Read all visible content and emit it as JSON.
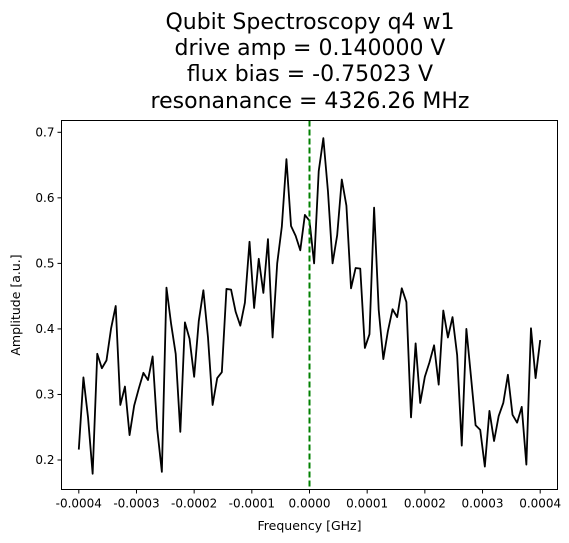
{
  "chart_data": {
    "type": "line",
    "title_lines": [
      "Qubit Spectroscopy q4 w1",
      "drive amp = 0.140000 V",
      "flux bias = -0.75023 V",
      "resonanance = 4326.26 MHz"
    ],
    "xlabel": "Frequency [GHz]",
    "ylabel": "Amplitude [a.u.]",
    "xlim": [
      -0.00043,
      0.00043
    ],
    "ylim": [
      0.155,
      0.718
    ],
    "x_ticks": [
      -0.0004,
      -0.0003,
      -0.0002,
      -0.0001,
      0.0,
      0.0001,
      0.0002,
      0.0003,
      0.0004
    ],
    "x_tick_labels": [
      "-0.0004",
      "-0.0003",
      "-0.0002",
      "-0.0001",
      "0.0000",
      "0.0001",
      "0.0002",
      "0.0003",
      "0.0004"
    ],
    "y_ticks": [
      0.2,
      0.3,
      0.4,
      0.5,
      0.6,
      0.7
    ],
    "y_tick_labels": [
      "0.2",
      "0.3",
      "0.4",
      "0.5",
      "0.6",
      "0.7"
    ],
    "grid": false,
    "line_color": "#000000",
    "marker_line": {
      "x": 0.0,
      "color": "#008000",
      "style": "dashed"
    },
    "series": [
      {
        "x": [
          -0.0004,
          -0.000392,
          -0.000384,
          -0.000376,
          -0.000368,
          -0.00036,
          -0.000352,
          -0.000344,
          -0.000336,
          -0.000328,
          -0.00032,
          -0.000312,
          -0.000304,
          -0.000296,
          -0.000288,
          -0.00028,
          -0.000272,
          -0.000264,
          -0.000256,
          -0.000248,
          -0.00024,
          -0.000232,
          -0.000224,
          -0.000216,
          -0.000208,
          -0.0002,
          -0.000192,
          -0.000184,
          -0.000176,
          -0.000168,
          -0.00016,
          -0.000152,
          -0.000144,
          -0.000136,
          -0.000128,
          -0.00012,
          -0.000112,
          -0.000104,
          -9.6e-05,
          -8.8e-05,
          -8e-05,
          -7.2e-05,
          -6.4e-05,
          -5.6e-05,
          -4.8e-05,
          -4e-05,
          -3.2e-05,
          -2.4e-05,
          -1.6e-05,
          -8e-06,
          0.0,
          8e-06,
          1.6e-05,
          2.4e-05,
          3.2e-05,
          4e-05,
          4.8e-05,
          5.6e-05,
          6.4e-05,
          7.2e-05,
          8e-05,
          8.8e-05,
          9.6e-05,
          0.000104,
          0.000112,
          0.00012,
          0.000128,
          0.000136,
          0.000144,
          0.000152,
          0.00016,
          0.000168,
          0.000176,
          0.000184,
          0.000192,
          0.0002,
          0.000208,
          0.000216,
          0.000224,
          0.000232,
          0.00024,
          0.000248,
          0.000256,
          0.000264,
          0.000272,
          0.00028,
          0.000288,
          0.000296,
          0.000304,
          0.000312,
          0.00032,
          0.000328,
          0.000336,
          0.000344,
          0.000352,
          0.00036,
          0.000368,
          0.000376,
          0.000384,
          0.000392,
          0.0004
        ],
        "values": [
          0.216,
          0.326,
          0.265,
          0.179,
          0.362,
          0.34,
          0.352,
          0.401,
          0.435,
          0.284,
          0.312,
          0.238,
          0.283,
          0.309,
          0.333,
          0.322,
          0.358,
          0.247,
          0.182,
          0.463,
          0.408,
          0.362,
          0.243,
          0.41,
          0.385,
          0.327,
          0.412,
          0.459,
          0.387,
          0.284,
          0.325,
          0.334,
          0.461,
          0.46,
          0.426,
          0.405,
          0.44,
          0.533,
          0.432,
          0.507,
          0.455,
          0.537,
          0.387,
          0.5,
          0.556,
          0.659,
          0.557,
          0.542,
          0.52,
          0.574,
          0.565,
          0.5,
          0.641,
          0.691,
          0.61,
          0.5,
          0.543,
          0.628,
          0.588,
          0.462,
          0.493,
          0.492,
          0.371,
          0.392,
          0.585,
          0.429,
          0.354,
          0.397,
          0.43,
          0.418,
          0.462,
          0.441,
          0.265,
          0.378,
          0.287,
          0.327,
          0.349,
          0.375,
          0.315,
          0.428,
          0.387,
          0.418,
          0.36,
          0.222,
          0.4,
          0.327,
          0.253,
          0.246,
          0.19,
          0.275,
          0.229,
          0.267,
          0.287,
          0.33,
          0.269,
          0.257,
          0.281,
          0.193,
          0.401,
          0.325,
          0.383
        ]
      }
    ]
  }
}
